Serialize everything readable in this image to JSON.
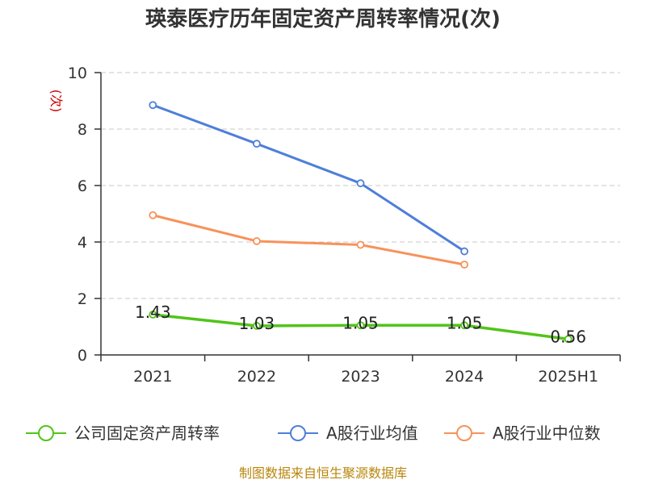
{
  "chart_data": {
    "type": "line",
    "title": "瑛泰医疗历年固定资产周转率情况(次)",
    "ylabel": "(次)",
    "xlabel": "",
    "categories": [
      "2021",
      "2022",
      "2023",
      "2024",
      "2025H1"
    ],
    "ylim": [
      0,
      10
    ],
    "yticks": [
      0,
      2,
      4,
      6,
      8,
      10
    ],
    "grid": true,
    "legend_position": "bottom",
    "series": [
      {
        "name": "公司固定资产周转率",
        "color": "#52c41a",
        "values": [
          1.43,
          1.03,
          1.05,
          1.05,
          0.56
        ],
        "labels": [
          "1.43",
          "1.03",
          "1.05",
          "1.05",
          "0.56"
        ],
        "show_labels": true
      },
      {
        "name": "A股行业均值",
        "color": "#4e7fd9",
        "values": [
          8.85,
          7.48,
          6.08,
          3.67,
          null
        ],
        "show_labels": false
      },
      {
        "name": "A股行业中位数",
        "color": "#f7925a",
        "values": [
          4.95,
          4.03,
          3.9,
          3.2,
          null
        ],
        "show_labels": false
      }
    ]
  },
  "footer": {
    "source": "制图数据来自恒生聚源数据库"
  }
}
